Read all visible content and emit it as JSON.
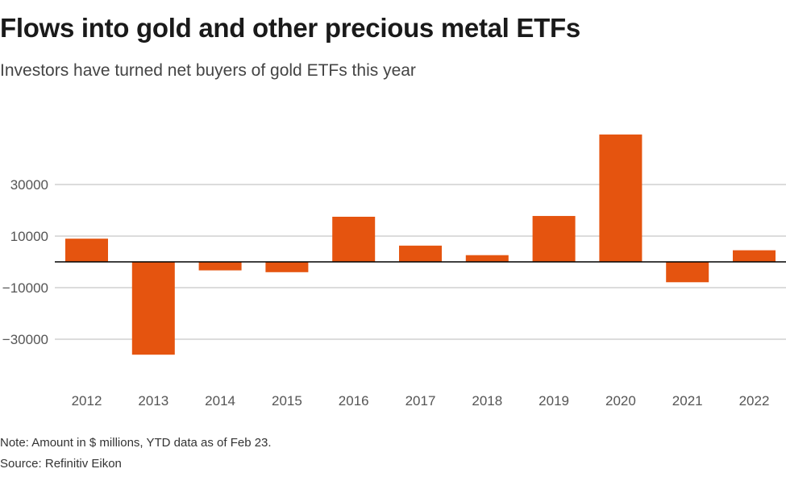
{
  "header": {
    "title": "Flows into gold and other precious metal ETFs",
    "subtitle": "Investors have turned net buyers of gold ETFs this year"
  },
  "footer": {
    "note": "Note: Amount in $ millions, YTD data as of Feb 23.",
    "source": "Source: Refinitiv Eikon"
  },
  "colors": {
    "bar": "#e5540f",
    "grid": "#c8c8c8",
    "zero_line": "#000000"
  },
  "chart_data": {
    "type": "bar",
    "title": "Flows into gold and other precious metal ETFs",
    "subtitle": "Investors have turned net buyers of gold ETFs this year",
    "xlabel": "",
    "ylabel": "",
    "unit": "$ millions",
    "categories": [
      "2012",
      "2013",
      "2014",
      "2015",
      "2016",
      "2017",
      "2018",
      "2019",
      "2020",
      "2021",
      "2022"
    ],
    "values": [
      9000,
      -36000,
      -3300,
      -4000,
      17500,
      6300,
      2600,
      17800,
      49400,
      -7900,
      4500
    ],
    "yticks": [
      30000,
      10000,
      -10000,
      -30000
    ],
    "ytick_labels": [
      "30000",
      "10000",
      "−10000",
      "−30000"
    ],
    "ylim": [
      -50000,
      55000
    ],
    "grid": true,
    "legend": "none"
  }
}
